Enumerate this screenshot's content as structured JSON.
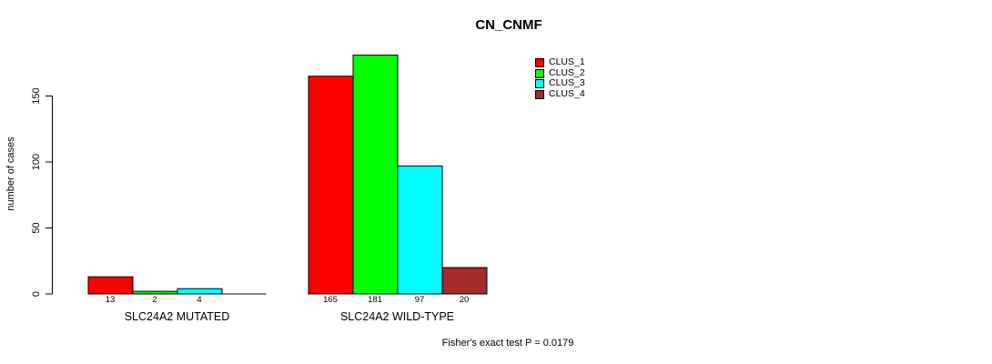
{
  "chart_data": {
    "type": "bar",
    "title": "CN_CNMF",
    "ylabel": "number of cases",
    "xlabel": "",
    "yticks": [
      0,
      50,
      100,
      150
    ],
    "ylim": [
      0,
      190
    ],
    "grid": false,
    "legend_position": "top-right",
    "series": [
      {
        "name": "CLUS_1",
        "color": "#FF0000"
      },
      {
        "name": "CLUS_2",
        "color": "#00FF00"
      },
      {
        "name": "CLUS_3",
        "color": "#00FFFF"
      },
      {
        "name": "CLUS_4",
        "color": "#A52A2A"
      }
    ],
    "groups": [
      {
        "label": "SLC24A2 MUTATED",
        "values": [
          13,
          2,
          4,
          0
        ],
        "value_labels": [
          "13",
          "2",
          "4",
          ""
        ]
      },
      {
        "label": "SLC24A2 WILD-TYPE",
        "values": [
          165,
          181,
          97,
          20
        ],
        "value_labels": [
          "165",
          "181",
          "97",
          "20"
        ]
      }
    ],
    "footnote": "Fisher's exact test P = 0.0179"
  },
  "colors": {
    "background": "#FFFFFF",
    "bar_border": "#000000",
    "axis": "#000000",
    "text": "#000000"
  }
}
